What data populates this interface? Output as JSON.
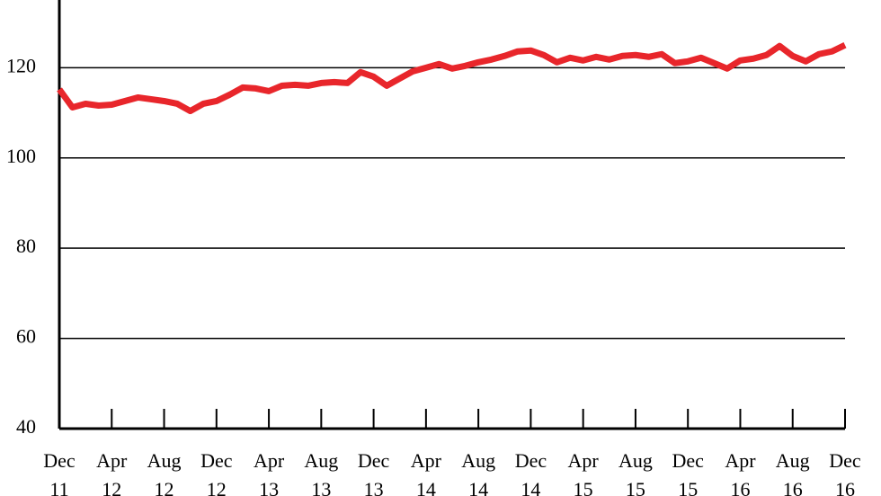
{
  "chart_data": {
    "type": "line",
    "categories": [
      "Dec 11",
      null,
      null,
      null,
      "Apr 12",
      null,
      null,
      null,
      "Aug 12",
      null,
      null,
      null,
      "Dec 12",
      null,
      null,
      null,
      "Apr 13",
      null,
      null,
      null,
      "Aug 13",
      null,
      null,
      null,
      "Dec 13",
      null,
      null,
      null,
      "Apr 14",
      null,
      null,
      null,
      "Aug 14",
      null,
      null,
      null,
      "Dec 14",
      null,
      null,
      null,
      "Apr 15",
      null,
      null,
      null,
      "Aug 15",
      null,
      null,
      null,
      "Dec 15",
      null,
      null,
      null,
      "Apr 16",
      null,
      null,
      null,
      "Aug 16",
      null,
      null,
      null,
      "Dec 16"
    ],
    "values": [
      115.2,
      111.2,
      112,
      111.6,
      111.8,
      112.6,
      113.4,
      113,
      112.6,
      112,
      110.4,
      112,
      112.6,
      114,
      115.6,
      115.4,
      114.8,
      116,
      116.2,
      116,
      116.6,
      116.8,
      116.6,
      119,
      118,
      116,
      117.6,
      119.2,
      120,
      120.8,
      119.8,
      120.4,
      121.2,
      121.8,
      122.6,
      123.6,
      123.8,
      122.8,
      121.2,
      122.2,
      121.6,
      122.4,
      121.8,
      122.6,
      122.8,
      122.4,
      123,
      121,
      121.4,
      122.2,
      121,
      119.8,
      121.6,
      122,
      122.8,
      124.8,
      122.6,
      121.4,
      123,
      123.6,
      125
    ],
    "color": "#e8262b",
    "ylim": [
      40,
      135
    ],
    "yticks": [
      40,
      60,
      80,
      100,
      120
    ],
    "grid": true
  }
}
